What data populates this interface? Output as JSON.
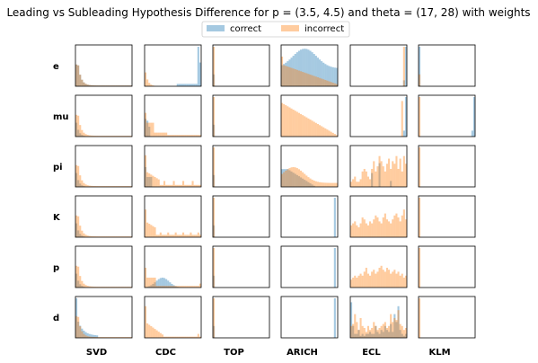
{
  "chart_data": {
    "type": "histogram-grid",
    "title": "Leading vs Subleading Hypothesis Difference for p = (3.5, 4.5) and theta = (17, 28) with weights",
    "rows": [
      "e",
      "mu",
      "pi",
      "K",
      "p",
      "d"
    ],
    "columns": [
      "SVD",
      "CDC",
      "TOP",
      "ARICH",
      "ECL",
      "KLM"
    ],
    "legend": {
      "position": "top-center"
    },
    "series": [
      {
        "name": "correct",
        "color": "#1f77b4",
        "alpha": 0.4
      },
      {
        "name": "incorrect",
        "color": "#ff7f0e",
        "alpha": 0.4
      }
    ],
    "axes": {
      "ticks": "none",
      "grid": false
    },
    "panels": {
      "e": {
        "SVD": {
          "correct": "decay1",
          "incorrect": "decay1"
        },
        "CDC": {
          "correct": "cdc_e",
          "incorrect": "decay1s"
        },
        "TOP": {
          "correct": "spike0s",
          "incorrect": "spike0"
        },
        "ARICH": {
          "correct": "arich_e_c",
          "incorrect": "arich_e_i"
        },
        "ECL": {
          "correct": "spike_right",
          "incorrect": "ecl_e_i"
        },
        "KLM": {
          "correct": "spike0",
          "incorrect": "spike0s"
        }
      },
      "mu": {
        "SVD": {
          "correct": "decay1s",
          "incorrect": "decay1"
        },
        "CDC": {
          "correct": "cdc_mu_c",
          "incorrect": "cdc_mu_i"
        },
        "TOP": {
          "correct": "spike0s",
          "incorrect": "spike0"
        },
        "ARICH": {
          "correct": "none",
          "incorrect": "arich_mu_i"
        },
        "ECL": {
          "correct": "spike_right",
          "incorrect": "ecl_mu_i"
        },
        "KLM": {
          "correct": "spike_right",
          "incorrect": "spike0"
        }
      },
      "pi": {
        "SVD": {
          "correct": "decay1s",
          "incorrect": "decay1"
        },
        "CDC": {
          "correct": "cdc_pi_c",
          "incorrect": "cdc_pi_i"
        },
        "TOP": {
          "correct": "spike0s",
          "incorrect": "spike0"
        },
        "ARICH": {
          "correct": "arich_pi_c",
          "incorrect": "arich_pi_i"
        },
        "ECL": {
          "correct": "ecl_pi_c",
          "incorrect": "ecl_pi_i"
        },
        "KLM": {
          "correct": "none",
          "incorrect": "spike0"
        }
      },
      "K": {
        "SVD": {
          "correct": "decay1s",
          "incorrect": "decay1"
        },
        "CDC": {
          "correct": "none",
          "incorrect": "cdc_k_i"
        },
        "TOP": {
          "correct": "spike0s",
          "incorrect": "spike0"
        },
        "ARICH": {
          "correct": "spike_right2",
          "incorrect": "none"
        },
        "ECL": {
          "correct": "none",
          "incorrect": "ecl_k_i"
        },
        "KLM": {
          "correct": "none",
          "incorrect": "spike0"
        }
      },
      "p": {
        "SVD": {
          "correct": "decay1s",
          "incorrect": "decay1"
        },
        "CDC": {
          "correct": "cdc_p_c",
          "incorrect": "cdc_p_i"
        },
        "TOP": {
          "correct": "spike0s",
          "incorrect": "spike0"
        },
        "ARICH": {
          "correct": "spike_right2",
          "incorrect": "none"
        },
        "ECL": {
          "correct": "none",
          "incorrect": "ecl_p_i"
        },
        "KLM": {
          "correct": "none",
          "incorrect": "spike0"
        }
      },
      "d": {
        "SVD": {
          "correct": "svd_d_c",
          "incorrect": "decay1"
        },
        "CDC": {
          "correct": "none",
          "incorrect": "cdc_d_i"
        },
        "TOP": {
          "correct": "spike0s",
          "incorrect": "spike0"
        },
        "ARICH": {
          "correct": "spike_right2",
          "incorrect": "none"
        },
        "ECL": {
          "correct": "ecl_d_c",
          "incorrect": "ecl_d_i"
        },
        "KLM": {
          "correct": "none",
          "incorrect": "spike0"
        }
      }
    }
  }
}
